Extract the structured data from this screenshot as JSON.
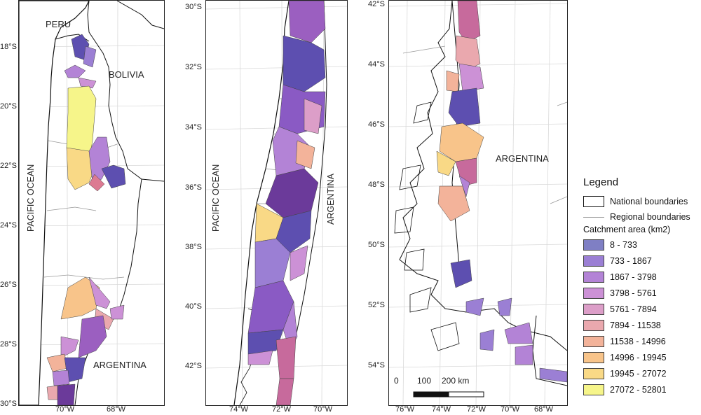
{
  "panels": {
    "north": {
      "country_labels": [
        "PERU",
        "BOLIVIA",
        "ARGENTINA"
      ],
      "ocean_label": "PACIFIC OCEAN",
      "lat_ticks": [
        "18°S",
        "20°S",
        "22°S",
        "24°S",
        "26°S",
        "28°S",
        "30°S"
      ],
      "lon_ticks": [
        "70°W",
        "68°W"
      ]
    },
    "central": {
      "ocean_label": "PACIFIC OCEAN",
      "country_label": "ARGENTINA",
      "lat_ticks": [
        "30°S",
        "32°S",
        "34°S",
        "36°S",
        "38°S",
        "40°S",
        "42°S"
      ],
      "lon_ticks": [
        "74°W",
        "72°W",
        "70°W"
      ]
    },
    "south": {
      "country_label": "ARGENTINA",
      "lat_ticks": [
        "42°S",
        "44°S",
        "46°S",
        "48°S",
        "50°S",
        "52°S",
        "54°S"
      ],
      "lon_ticks": [
        "76°W",
        "74°W",
        "72°W",
        "70°W",
        "68°W"
      ],
      "scalebar": {
        "labels": [
          "0",
          "100",
          "200 km"
        ]
      }
    }
  },
  "legend": {
    "title": "Legend",
    "national": "National boundaries",
    "regional": "Regional boundaries",
    "catchment_title": "Catchment area (km2)",
    "classes": [
      {
        "label": "8 - 733",
        "color": "#7f7fc4"
      },
      {
        "label": "733 - 1867",
        "color": "#9b7fd4"
      },
      {
        "label": "1867 - 3798",
        "color": "#b383d6"
      },
      {
        "label": "3798 - 5761",
        "color": "#cc91d6"
      },
      {
        "label": "5761 - 7894",
        "color": "#dc9ec8"
      },
      {
        "label": "7894 - 11538",
        "color": "#eaa8ae"
      },
      {
        "label": "11538 - 14996",
        "color": "#f3b39a"
      },
      {
        "label": "14996 - 19945",
        "color": "#f8c48a"
      },
      {
        "label": "19945 - 27072",
        "color": "#f9d986"
      },
      {
        "label": "27072 - 52801",
        "color": "#f6f58a"
      }
    ]
  }
}
